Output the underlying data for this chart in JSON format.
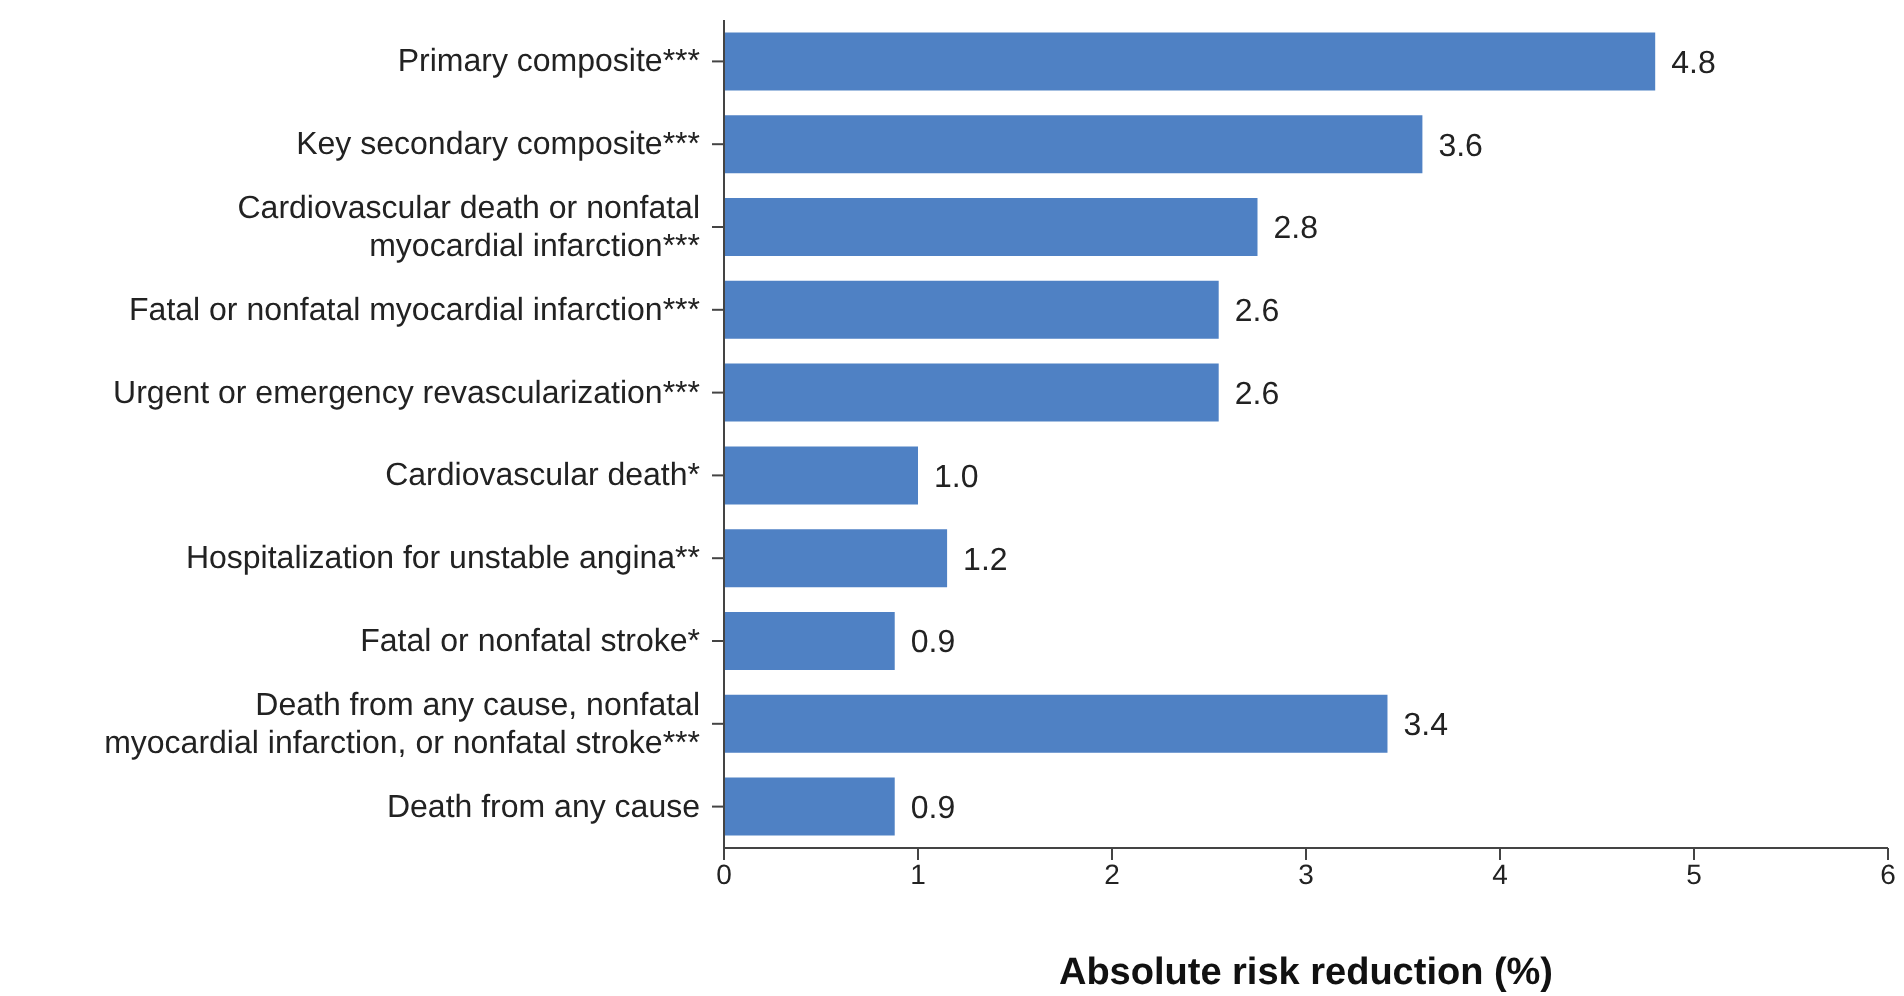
{
  "chart_data": {
    "type": "bar",
    "orientation": "horizontal",
    "xlabel": "Absolute risk reduction (%)",
    "categories": [
      "Primary composite***",
      "Key secondary composite***",
      "Cardiovascular death or nonfatal\nmyocardial infarction***",
      "Fatal or nonfatal myocardial infarction***",
      "Urgent or emergency revascularization***",
      "Cardiovascular death*",
      "Hospitalization for unstable angina**",
      "Fatal or nonfatal stroke*",
      "Death from any cause, nonfatal\nmyocardial infarction, or nonfatal stroke***",
      "Death from any cause"
    ],
    "values": [
      4.8,
      3.6,
      2.75,
      2.55,
      2.55,
      1.0,
      1.15,
      0.88,
      3.42,
      0.88
    ],
    "value_labels": [
      "4.8",
      "3.6",
      "2.8",
      "2.6",
      "2.6",
      "1.0",
      "1.2",
      "0.9",
      "3.4",
      "0.9"
    ],
    "color": "#4f81c4",
    "xlim": [
      0,
      6
    ],
    "xticks": [
      0,
      1,
      2,
      3,
      4,
      5,
      6
    ],
    "grid": false
  }
}
